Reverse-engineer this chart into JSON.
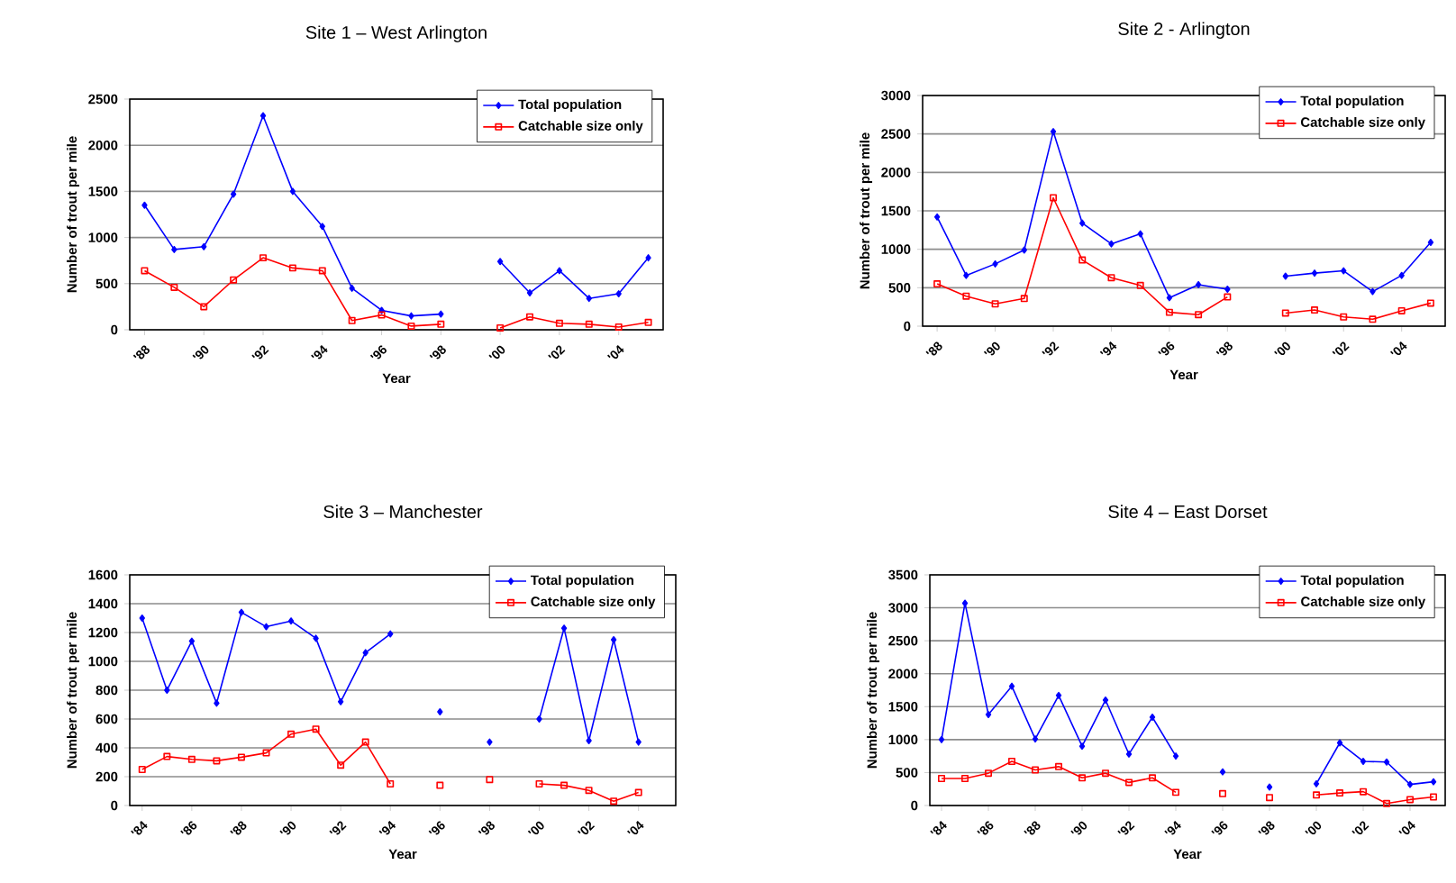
{
  "chart_data": [
    {
      "type": "line",
      "title": "Site 1 – West Arlington",
      "xlabel": "Year",
      "ylabel": "Number of trout per mile",
      "categories": [
        "'88",
        null,
        "'90",
        null,
        "'92",
        null,
        "'94",
        null,
        "'96",
        null,
        "'98",
        null,
        "'00",
        null,
        "'02",
        null,
        "'04",
        null
      ],
      "ylim": [
        0,
        2500
      ],
      "yticks": [
        0,
        500,
        1000,
        1500,
        2000,
        2500
      ],
      "grid": "y",
      "legend": "top right",
      "line_style": "solid",
      "series": [
        {
          "name": "Total population",
          "color": "#0000ff",
          "marker": "diamond",
          "values": [
            1350,
            870,
            900,
            1470,
            2320,
            1500,
            1120,
            450,
            210,
            150,
            170,
            null,
            740,
            400,
            640,
            340,
            390,
            780
          ]
        },
        {
          "name": "Catchable size only",
          "color": "#ff0000",
          "marker": "square",
          "values": [
            640,
            460,
            250,
            540,
            780,
            670,
            640,
            100,
            160,
            40,
            60,
            null,
            20,
            140,
            70,
            60,
            30,
            80
          ]
        }
      ]
    },
    {
      "type": "line",
      "title": "Site 2 - Arlington",
      "xlabel": "Year",
      "ylabel": "Number of trout per mile",
      "categories": [
        "'88",
        null,
        "'90",
        null,
        "'92",
        null,
        "'94",
        null,
        "'96",
        null,
        "'98",
        null,
        "'00",
        null,
        "'02",
        null,
        "'04",
        null
      ],
      "ylim": [
        0,
        3000
      ],
      "yticks": [
        0,
        500,
        1000,
        1500,
        2000,
        2500,
        3000
      ],
      "grid": "y",
      "legend": "top right",
      "line_style": "solid",
      "series": [
        {
          "name": "Total population",
          "color": "#0000ff",
          "marker": "diamond",
          "values": [
            1420,
            660,
            810,
            990,
            2530,
            1340,
            1070,
            1200,
            370,
            540,
            480,
            null,
            650,
            690,
            720,
            450,
            660,
            1090
          ]
        },
        {
          "name": "Catchable size only",
          "color": "#ff0000",
          "marker": "square",
          "values": [
            550,
            390,
            290,
            360,
            1670,
            860,
            630,
            530,
            180,
            150,
            380,
            null,
            170,
            210,
            120,
            90,
            200,
            300
          ]
        }
      ]
    },
    {
      "type": "line",
      "title": "Site 3 – Manchester",
      "xlabel": "Year",
      "ylabel": "Number of trout per mile",
      "categories": [
        "'84",
        null,
        "'86",
        null,
        "'88",
        null,
        "'90",
        null,
        "'92",
        null,
        "'94",
        null,
        "'96",
        null,
        "'98",
        null,
        "'00",
        null,
        "'02",
        null,
        "'04",
        null
      ],
      "ylim": [
        0,
        1600
      ],
      "yticks": [
        0,
        200,
        400,
        600,
        800,
        1000,
        1200,
        1400,
        1600
      ],
      "grid": "y",
      "legend": "top right",
      "line_style": "solid",
      "series": [
        {
          "name": "Total population",
          "color": "#0000ff",
          "marker": "diamond",
          "values": [
            1300,
            800,
            1140,
            710,
            1340,
            1240,
            1280,
            1160,
            720,
            1060,
            1190,
            null,
            650,
            null,
            440,
            null,
            600,
            1230,
            450,
            1150,
            440,
            null
          ]
        },
        {
          "name": "Catchable size only",
          "color": "#ff0000",
          "marker": "square",
          "values": [
            250,
            340,
            320,
            310,
            335,
            365,
            495,
            530,
            280,
            440,
            150,
            null,
            140,
            null,
            180,
            null,
            150,
            140,
            105,
            30,
            90,
            null
          ]
        }
      ]
    },
    {
      "type": "line",
      "title": "Site 4 – East Dorset",
      "xlabel": "Year",
      "ylabel": "Number of trout per mile",
      "categories": [
        "'84",
        null,
        "'86",
        null,
        "'88",
        null,
        "'90",
        null,
        "'92",
        null,
        "'94",
        null,
        "'96",
        null,
        "'98",
        null,
        "'00",
        null,
        "'02",
        null,
        "'04",
        null
      ],
      "ylim": [
        0,
        3500
      ],
      "yticks": [
        0,
        500,
        1000,
        1500,
        2000,
        2500,
        3000,
        3500
      ],
      "grid": "y",
      "legend": "top right",
      "line_style": "solid",
      "series": [
        {
          "name": "Total population",
          "color": "#0000ff",
          "marker": "diamond",
          "values": [
            1000,
            3070,
            1380,
            1810,
            1010,
            1670,
            900,
            1600,
            780,
            1340,
            750,
            null,
            510,
            null,
            280,
            null,
            330,
            950,
            670,
            660,
            320,
            360
          ]
        },
        {
          "name": "Catchable size only",
          "color": "#ff0000",
          "marker": "square",
          "values": [
            410,
            410,
            490,
            670,
            540,
            590,
            420,
            490,
            350,
            420,
            200,
            null,
            180,
            null,
            120,
            null,
            160,
            190,
            210,
            30,
            90,
            130
          ]
        }
      ]
    }
  ]
}
